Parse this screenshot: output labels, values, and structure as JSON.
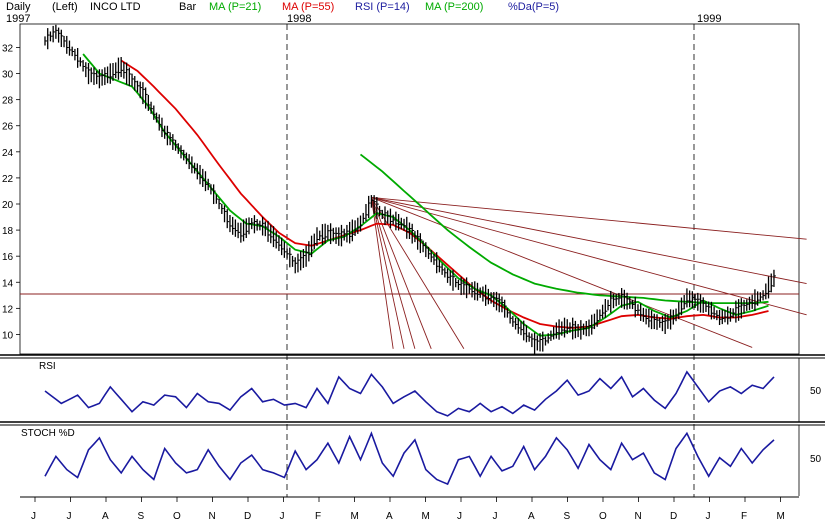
{
  "header": {
    "period": "Daily",
    "scale": "(Left)",
    "symbol": "INCO LTD",
    "bar": "Bar",
    "ma21": "MA (P=21)",
    "ma55": "MA (P=55)",
    "rsi": "RSI (P=14)",
    "ma200": "MA (P=200)",
    "stoch": "%Da(P=5)",
    "year1997": "1997",
    "year1998": "1998",
    "year1999": "1999"
  },
  "panels": {
    "rsi_title": "RSI",
    "rsi_level": "50",
    "stoch_title": "STOCH %D",
    "stoch_level": "50"
  },
  "colors": {
    "price": "#000000",
    "ma21": "#00aa00",
    "ma55": "#dd0000",
    "ma200": "#00aa00",
    "fan": "#8b2020",
    "indicator": "#1a1aa0",
    "header_ma21": "#00aa00",
    "header_ma55": "#dd0000",
    "header_rsi": "#2020a0",
    "header_ma200": "#00aa00",
    "header_stoch": "#2020a0"
  },
  "chart_data": {
    "type": "line",
    "title": "INCO LTD",
    "y_ticks": [
      10,
      12,
      14,
      16,
      18,
      20,
      22,
      24,
      26,
      28,
      30,
      32
    ],
    "ylim": [
      8.5,
      33.8
    ],
    "x_month_labels": [
      "J",
      "J",
      "A",
      "S",
      "O",
      "N",
      "D",
      "J",
      "F",
      "M",
      "A",
      "M",
      "J",
      "J",
      "A",
      "S",
      "O",
      "N",
      "D",
      "J",
      "F",
      "M"
    ],
    "horizontal_line": 13.1,
    "price_knots": [
      [
        0,
        32.5
      ],
      [
        2,
        33.2
      ],
      [
        4,
        32.2
      ],
      [
        6,
        31.2
      ],
      [
        8,
        30.0
      ],
      [
        10,
        29.6
      ],
      [
        12,
        30.0
      ],
      [
        14,
        30.5
      ],
      [
        16,
        29.5
      ],
      [
        18,
        28.5
      ],
      [
        20,
        27.0
      ],
      [
        22,
        25.5
      ],
      [
        24,
        24.5
      ],
      [
        26,
        23.5
      ],
      [
        28,
        22.5
      ],
      [
        30,
        21.5
      ],
      [
        32,
        20.0
      ],
      [
        34,
        18.5
      ],
      [
        36,
        17.8
      ],
      [
        38,
        18.5
      ],
      [
        40,
        18.3
      ],
      [
        42,
        17.5
      ],
      [
        44,
        16.5
      ],
      [
        46,
        15.3
      ],
      [
        48,
        16.0
      ],
      [
        50,
        17.5
      ],
      [
        52,
        17.8
      ],
      [
        54,
        17.5
      ],
      [
        56,
        17.8
      ],
      [
        58,
        18.5
      ],
      [
        60,
        20.2
      ],
      [
        62,
        19.2
      ],
      [
        64,
        18.8
      ],
      [
        66,
        18.4
      ],
      [
        68,
        17.5
      ],
      [
        70,
        16.5
      ],
      [
        72,
        15.5
      ],
      [
        74,
        14.5
      ],
      [
        76,
        13.8
      ],
      [
        78,
        13.5
      ],
      [
        80,
        13.2
      ],
      [
        82,
        12.8
      ],
      [
        84,
        12.3
      ],
      [
        86,
        11.0
      ],
      [
        88,
        10.3
      ],
      [
        90,
        9.3
      ],
      [
        92,
        9.5
      ],
      [
        94,
        10.3
      ],
      [
        96,
        10.6
      ],
      [
        98,
        10.3
      ],
      [
        100,
        10.5
      ],
      [
        102,
        11.5
      ],
      [
        104,
        12.5
      ],
      [
        106,
        12.8
      ],
      [
        108,
        12.3
      ],
      [
        110,
        11.5
      ],
      [
        112,
        11.0
      ],
      [
        114,
        10.8
      ],
      [
        116,
        11.5
      ],
      [
        118,
        12.8
      ],
      [
        120,
        12.5
      ],
      [
        122,
        12.0
      ],
      [
        124,
        11.3
      ],
      [
        126,
        11.5
      ],
      [
        128,
        12.0
      ],
      [
        130,
        12.5
      ],
      [
        132,
        13.0
      ],
      [
        133,
        13.6
      ],
      [
        134,
        14.3
      ]
    ],
    "ma21_knots": [
      [
        7,
        31.5
      ],
      [
        10,
        30.0
      ],
      [
        13,
        29.5
      ],
      [
        16,
        29.0
      ],
      [
        19,
        27.5
      ],
      [
        22,
        25.5
      ],
      [
        25,
        24.0
      ],
      [
        28,
        22.5
      ],
      [
        31,
        21.0
      ],
      [
        34,
        19.5
      ],
      [
        37,
        18.5
      ],
      [
        40,
        18.3
      ],
      [
        43,
        17.5
      ],
      [
        46,
        16.5
      ],
      [
        49,
        16.2
      ],
      [
        52,
        17.2
      ],
      [
        55,
        17.5
      ],
      [
        58,
        18.3
      ],
      [
        61,
        19.3
      ],
      [
        64,
        19.0
      ],
      [
        67,
        18.0
      ],
      [
        70,
        16.8
      ],
      [
        73,
        15.5
      ],
      [
        76,
        14.3
      ],
      [
        79,
        13.5
      ],
      [
        82,
        13.0
      ],
      [
        85,
        12.0
      ],
      [
        88,
        10.8
      ],
      [
        91,
        9.9
      ],
      [
        94,
        10.0
      ],
      [
        97,
        10.3
      ],
      [
        100,
        10.5
      ],
      [
        103,
        11.3
      ],
      [
        106,
        12.2
      ],
      [
        109,
        12.5
      ],
      [
        112,
        11.8
      ],
      [
        115,
        11.3
      ],
      [
        118,
        11.8
      ],
      [
        121,
        12.6
      ],
      [
        124,
        12.0
      ],
      [
        127,
        11.5
      ],
      [
        130,
        11.8
      ],
      [
        133,
        12.2
      ]
    ],
    "ma55_knots": [
      [
        14,
        31.0
      ],
      [
        17,
        30.2
      ],
      [
        20,
        29.0
      ],
      [
        24,
        27.3
      ],
      [
        28,
        25.3
      ],
      [
        32,
        23.0
      ],
      [
        36,
        20.8
      ],
      [
        40,
        19.0
      ],
      [
        43,
        17.8
      ],
      [
        46,
        17.0
      ],
      [
        49,
        16.8
      ],
      [
        52,
        17.2
      ],
      [
        55,
        17.6
      ],
      [
        58,
        18.0
      ],
      [
        61,
        18.5
      ],
      [
        64,
        18.4
      ],
      [
        67,
        17.8
      ],
      [
        70,
        16.8
      ],
      [
        73,
        15.7
      ],
      [
        76,
        14.6
      ],
      [
        79,
        13.5
      ],
      [
        82,
        12.6
      ],
      [
        85,
        11.9
      ],
      [
        88,
        11.3
      ],
      [
        91,
        10.8
      ],
      [
        94,
        10.6
      ],
      [
        97,
        10.5
      ],
      [
        100,
        10.6
      ],
      [
        103,
        11.0
      ],
      [
        106,
        11.4
      ],
      [
        109,
        11.5
      ],
      [
        112,
        11.3
      ],
      [
        115,
        11.2
      ],
      [
        118,
        11.4
      ],
      [
        121,
        11.5
      ],
      [
        124,
        11.3
      ],
      [
        127,
        11.3
      ],
      [
        130,
        11.5
      ],
      [
        133,
        11.8
      ]
    ],
    "ma200_knots": [
      [
        58,
        23.8
      ],
      [
        62,
        22.5
      ],
      [
        66,
        21.0
      ],
      [
        70,
        19.5
      ],
      [
        74,
        18.0
      ],
      [
        78,
        16.7
      ],
      [
        82,
        15.5
      ],
      [
        86,
        14.6
      ],
      [
        90,
        13.9
      ],
      [
        94,
        13.5
      ],
      [
        98,
        13.2
      ],
      [
        102,
        13.0
      ],
      [
        106,
        12.9
      ],
      [
        110,
        12.8
      ],
      [
        114,
        12.6
      ],
      [
        118,
        12.5
      ],
      [
        122,
        12.4
      ],
      [
        126,
        12.4
      ],
      [
        130,
        12.4
      ],
      [
        133,
        12.5
      ]
    ],
    "fan_lines": [
      {
        "from": [
          60,
          20.5
        ],
        "to": [
          140,
          17.3
        ]
      },
      {
        "from": [
          60,
          20.5
        ],
        "to": [
          140,
          13.9
        ]
      },
      {
        "from": [
          60,
          20.5
        ],
        "to": [
          140,
          11.5
        ]
      },
      {
        "from": [
          60,
          20.5
        ],
        "to": [
          130,
          9.0
        ]
      },
      {
        "from": [
          60,
          20.5
        ],
        "to": [
          77,
          8.9
        ]
      },
      {
        "from": [
          60,
          20.5
        ],
        "to": [
          71,
          8.9
        ]
      },
      {
        "from": [
          60,
          20.5
        ],
        "to": [
          68,
          8.9
        ]
      },
      {
        "from": [
          60,
          20.5
        ],
        "to": [
          66,
          8.9
        ]
      },
      {
        "from": [
          60,
          20.5
        ],
        "to": [
          64,
          8.9
        ]
      }
    ],
    "rsi_knots": [
      [
        0,
        55
      ],
      [
        3,
        40
      ],
      [
        6,
        50
      ],
      [
        8,
        35
      ],
      [
        10,
        40
      ],
      [
        12,
        60
      ],
      [
        14,
        45
      ],
      [
        16,
        30
      ],
      [
        18,
        42
      ],
      [
        20,
        38
      ],
      [
        22,
        50
      ],
      [
        24,
        48
      ],
      [
        26,
        35
      ],
      [
        28,
        52
      ],
      [
        30,
        42
      ],
      [
        32,
        40
      ],
      [
        34,
        32
      ],
      [
        36,
        48
      ],
      [
        38,
        58
      ],
      [
        40,
        42
      ],
      [
        42,
        45
      ],
      [
        44,
        38
      ],
      [
        46,
        40
      ],
      [
        48,
        35
      ],
      [
        50,
        58
      ],
      [
        52,
        40
      ],
      [
        54,
        72
      ],
      [
        56,
        58
      ],
      [
        58,
        52
      ],
      [
        60,
        75
      ],
      [
        62,
        60
      ],
      [
        64,
        40
      ],
      [
        66,
        48
      ],
      [
        68,
        55
      ],
      [
        70,
        42
      ],
      [
        72,
        30
      ],
      [
        74,
        25
      ],
      [
        76,
        34
      ],
      [
        78,
        30
      ],
      [
        80,
        40
      ],
      [
        82,
        30
      ],
      [
        84,
        36
      ],
      [
        86,
        28
      ],
      [
        88,
        38
      ],
      [
        90,
        32
      ],
      [
        92,
        45
      ],
      [
        94,
        55
      ],
      [
        96,
        68
      ],
      [
        98,
        50
      ],
      [
        100,
        55
      ],
      [
        102,
        70
      ],
      [
        104,
        58
      ],
      [
        106,
        72
      ],
      [
        108,
        48
      ],
      [
        110,
        58
      ],
      [
        112,
        44
      ],
      [
        114,
        34
      ],
      [
        116,
        52
      ],
      [
        118,
        78
      ],
      [
        120,
        60
      ],
      [
        122,
        42
      ],
      [
        124,
        55
      ],
      [
        126,
        60
      ],
      [
        128,
        52
      ],
      [
        130,
        62
      ],
      [
        132,
        58
      ],
      [
        134,
        72
      ]
    ],
    "stoch_knots": [
      [
        0,
        30
      ],
      [
        2,
        60
      ],
      [
        4,
        40
      ],
      [
        6,
        28
      ],
      [
        8,
        70
      ],
      [
        10,
        88
      ],
      [
        12,
        55
      ],
      [
        14,
        35
      ],
      [
        16,
        60
      ],
      [
        18,
        40
      ],
      [
        20,
        25
      ],
      [
        22,
        72
      ],
      [
        24,
        50
      ],
      [
        26,
        35
      ],
      [
        28,
        40
      ],
      [
        30,
        70
      ],
      [
        32,
        45
      ],
      [
        34,
        25
      ],
      [
        36,
        50
      ],
      [
        38,
        62
      ],
      [
        40,
        40
      ],
      [
        42,
        35
      ],
      [
        44,
        28
      ],
      [
        46,
        68
      ],
      [
        48,
        40
      ],
      [
        50,
        55
      ],
      [
        52,
        80
      ],
      [
        54,
        50
      ],
      [
        56,
        90
      ],
      [
        58,
        55
      ],
      [
        60,
        95
      ],
      [
        62,
        50
      ],
      [
        64,
        30
      ],
      [
        66,
        65
      ],
      [
        68,
        85
      ],
      [
        70,
        40
      ],
      [
        72,
        25
      ],
      [
        74,
        18
      ],
      [
        76,
        55
      ],
      [
        78,
        60
      ],
      [
        80,
        30
      ],
      [
        82,
        60
      ],
      [
        84,
        38
      ],
      [
        86,
        45
      ],
      [
        88,
        75
      ],
      [
        90,
        40
      ],
      [
        92,
        60
      ],
      [
        94,
        88
      ],
      [
        96,
        70
      ],
      [
        98,
        42
      ],
      [
        100,
        78
      ],
      [
        102,
        55
      ],
      [
        104,
        40
      ],
      [
        106,
        80
      ],
      [
        108,
        55
      ],
      [
        110,
        65
      ],
      [
        112,
        35
      ],
      [
        114,
        25
      ],
      [
        116,
        72
      ],
      [
        118,
        95
      ],
      [
        120,
        60
      ],
      [
        122,
        30
      ],
      [
        124,
        58
      ],
      [
        126,
        45
      ],
      [
        128,
        72
      ],
      [
        130,
        50
      ],
      [
        132,
        70
      ],
      [
        134,
        85
      ]
    ],
    "panel_ranges": {
      "rsi": [
        20,
        90
      ],
      "stoch": [
        0,
        100
      ]
    }
  }
}
